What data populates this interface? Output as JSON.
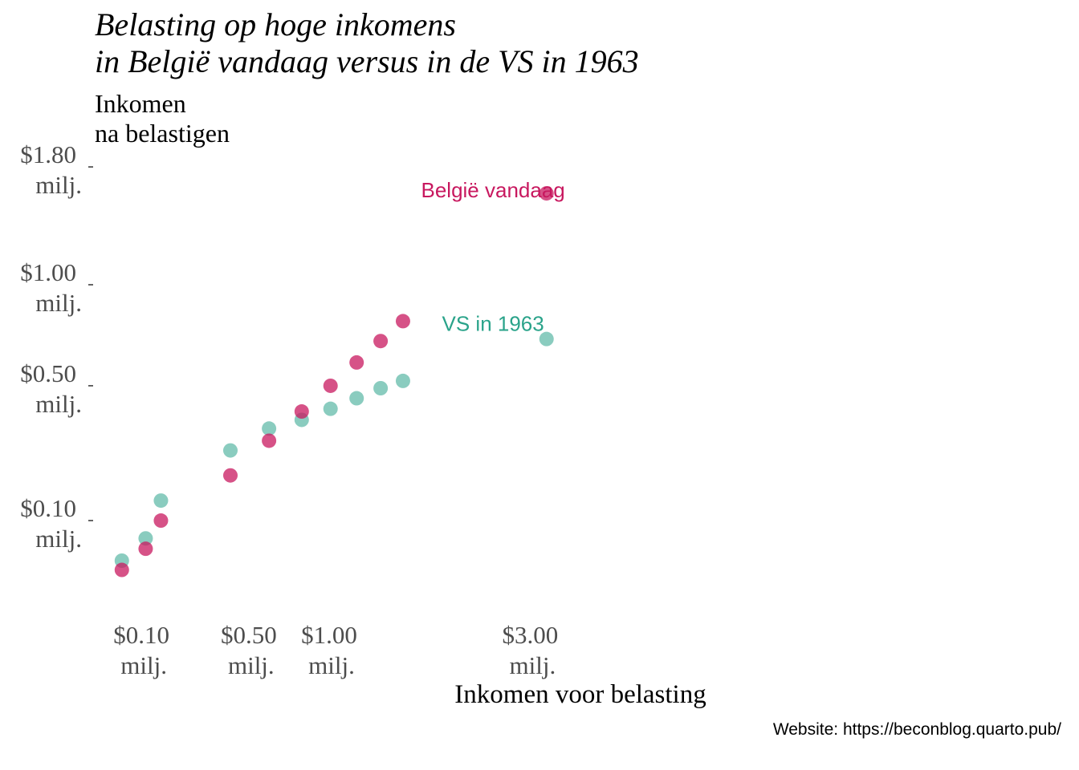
{
  "chart_data": {
    "type": "scatter",
    "title": [
      "Belasting op hoge inkomens",
      "in België vandaag versus in de VS in 1963"
    ],
    "ylabel": [
      "Inkomen",
      "na belastigen"
    ],
    "xlabel": "Inkomen voor belasting",
    "caption": "Website: https://beconblog.quarto.pub/",
    "x_ticks": [
      {
        "value": 0.1,
        "line1": "$0.10",
        "line2": "milj."
      },
      {
        "value": 0.5,
        "line1": "$0.50",
        "line2": "milj."
      },
      {
        "value": 1.0,
        "line1": "$1.00",
        "line2": "milj."
      },
      {
        "value": 3.0,
        "line1": "$3.00",
        "line2": "milj."
      }
    ],
    "y_ticks": [
      {
        "value": 0.1,
        "line1": "$0.10",
        "line2": "milj."
      },
      {
        "value": 0.5,
        "line1": "$0.50",
        "line2": "milj."
      },
      {
        "value": 1.0,
        "line1": "$1.00",
        "line2": "milj."
      },
      {
        "value": 1.8,
        "line1": "$1.80",
        "line2": "milj."
      }
    ],
    "series": [
      {
        "name": "België vandaag",
        "color": "#c8185f",
        "label_pos": [
          2.55,
          1.57
        ],
        "x": [
          0.06,
          0.11,
          0.15,
          0.41,
          0.61,
          0.81,
          1.01,
          1.21,
          1.41,
          1.61,
          3.21
        ],
        "y": [
          0.03,
          0.055,
          0.1,
          0.2,
          0.3,
          0.4,
          0.5,
          0.6,
          0.7,
          0.8,
          1.6
        ]
      },
      {
        "name": "VS in 1963",
        "color": "#2aa38a",
        "label_pos": [
          2.55,
          0.75
        ],
        "x": [
          0.06,
          0.11,
          0.15,
          0.41,
          0.61,
          0.81,
          1.01,
          1.21,
          1.41,
          1.61,
          3.21
        ],
        "y": [
          0.04,
          0.07,
          0.14,
          0.27,
          0.34,
          0.37,
          0.41,
          0.45,
          0.49,
          0.52,
          0.71
        ]
      }
    ]
  }
}
